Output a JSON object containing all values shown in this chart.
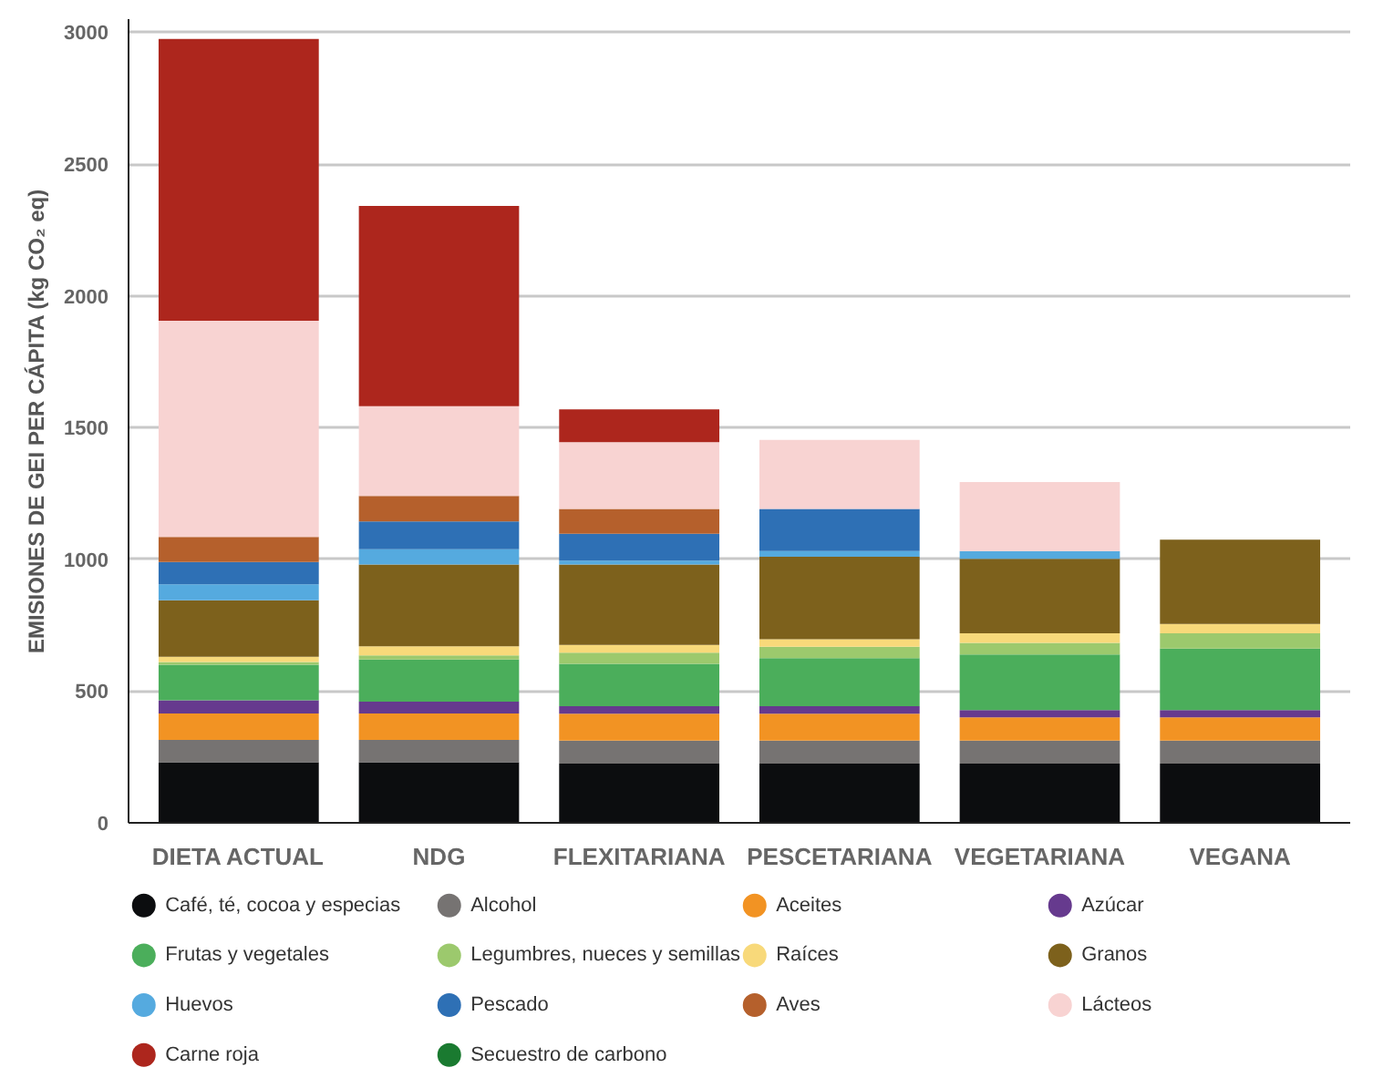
{
  "chart_data": {
    "type": "bar",
    "stacked": true,
    "ylabel": "EMISIONES DE GEI PER CÁPITA (kg CO₂ eq)",
    "categories": [
      "DIETA ACTUAL",
      "NDG",
      "FLEXITARIANA",
      "PESCETARIANA",
      "VEGETARIANA",
      "VEGANA"
    ],
    "ylim": [
      0,
      3050
    ],
    "yticks": [
      0,
      500,
      1000,
      1500,
      2000,
      2500,
      3000
    ],
    "grid": "y",
    "legend": "bottom",
    "series": [
      {
        "name": "Café, té, cocoa y especias",
        "color": "#0c0d0f",
        "values": [
          230,
          230,
          225,
          225,
          225,
          225
        ]
      },
      {
        "name": "Alcohol",
        "color": "#767372",
        "values": [
          85,
          85,
          87,
          87,
          87,
          87
        ]
      },
      {
        "name": "Aceites",
        "color": "#f29323",
        "values": [
          100,
          100,
          102,
          102,
          88,
          88
        ]
      },
      {
        "name": "Azúcar",
        "color": "#663a8e",
        "values": [
          50,
          45,
          29,
          29,
          28,
          28
        ]
      },
      {
        "name": "Frutas y vegetales",
        "color": "#4bae5b",
        "values": [
          135,
          160,
          160,
          182,
          211,
          233
        ]
      },
      {
        "name": "Legumbres, nueces y semillas",
        "color": "#9cc96d",
        "values": [
          10,
          15,
          43,
          43,
          44,
          58
        ]
      },
      {
        "name": "Raíces",
        "color": "#f8d97a",
        "values": [
          20,
          35,
          29,
          29,
          36,
          36
        ]
      },
      {
        "name": "Granos",
        "color": "#7d611c",
        "values": [
          215,
          310,
          305,
          313,
          283,
          320
        ]
      },
      {
        "name": "Huevos",
        "color": "#55aadf",
        "values": [
          60,
          58,
          15,
          21,
          29,
          null
        ]
      },
      {
        "name": "Pescado",
        "color": "#2e70b5",
        "values": [
          85,
          106,
          102,
          160,
          null,
          null
        ]
      },
      {
        "name": "Aves",
        "color": "#b5602c",
        "values": [
          95,
          97,
          94,
          null,
          null,
          null
        ]
      },
      {
        "name": "Lácteos",
        "color": "#f8d3d2",
        "values": [
          820,
          340,
          254,
          262,
          262,
          null
        ]
      },
      {
        "name": "Carne roja",
        "color": "#ad261d",
        "values": [
          1070,
          760,
          124,
          null,
          null,
          null
        ]
      },
      {
        "name": "Secuestro de carbono",
        "color": "#1a7a30",
        "values": [
          0,
          0,
          0,
          0,
          0,
          0
        ]
      }
    ]
  }
}
